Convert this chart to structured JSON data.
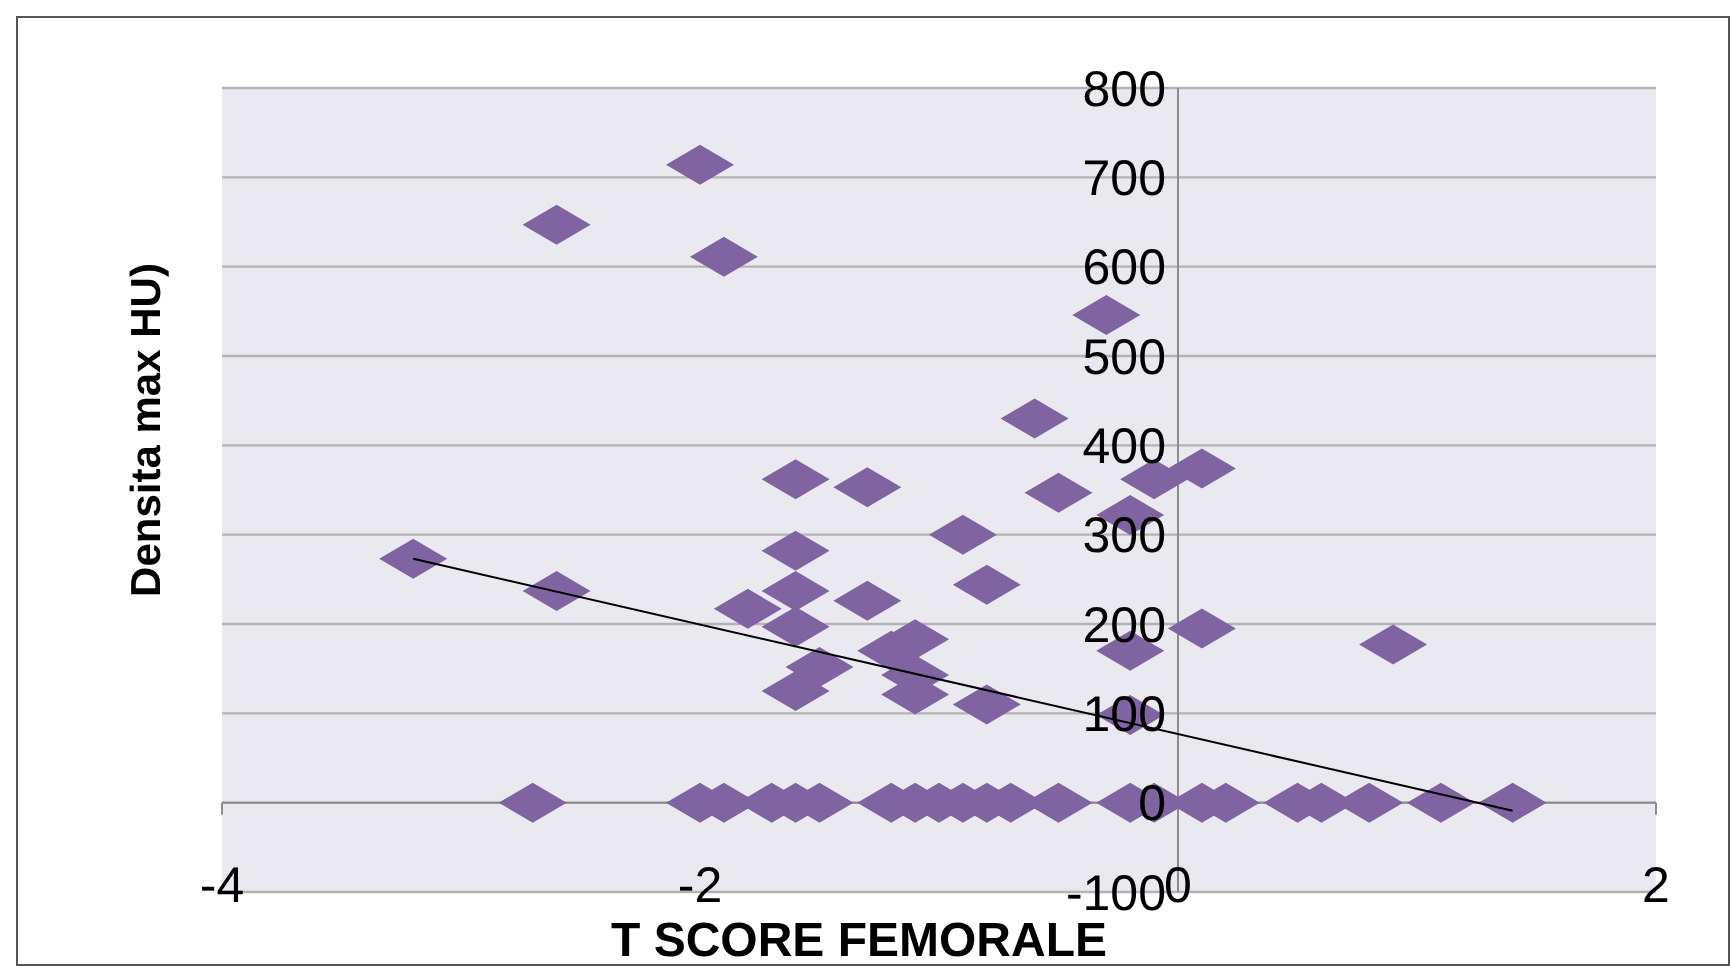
{
  "chart_data": {
    "type": "scatter",
    "xlabel": "T SCORE FEMORALE",
    "ylabel": "Densita max HU)",
    "xlim": [
      -4,
      2
    ],
    "ylim": [
      -100,
      800
    ],
    "xticks": [
      -4,
      -2,
      0,
      2
    ],
    "yticks": [
      -100,
      0,
      100,
      200,
      300,
      400,
      500,
      600,
      700,
      800
    ],
    "grid": "y",
    "marker": "diamond",
    "series": [
      {
        "color": "#8064a2",
        "x": [
          -2.0,
          -2.6,
          -1.9,
          -0.3,
          -0.6,
          -0.5,
          -0.1,
          0.1,
          -0.2,
          -1.6,
          -1.3,
          -0.9,
          -1.6,
          -3.2,
          -2.6,
          -1.8,
          -1.6,
          -1.3,
          -0.8,
          -1.6,
          -1.5,
          -1.6,
          -1.2,
          -1.1,
          -1.1,
          -1.1,
          -0.8,
          -0.2,
          -0.2,
          0.1,
          0.9,
          -2.7,
          -2.0,
          -1.9,
          -1.7,
          -1.6,
          -1.5,
          -1.2,
          -1.1,
          -1.0,
          -0.9,
          -0.8,
          -0.7,
          -0.5,
          -0.2,
          -0.1,
          0.1,
          0.2,
          0.5,
          0.6,
          0.8,
          1.1,
          1.4
        ],
        "values": [
          714,
          647,
          611,
          546,
          430,
          347,
          362,
          374,
          322,
          362,
          353,
          300,
          282,
          273,
          237,
          217,
          237,
          226,
          244,
          197,
          152,
          125,
          170,
          183,
          143,
          121,
          110,
          170,
          98,
          195,
          177,
          0,
          0,
          0,
          0,
          0,
          0,
          0,
          0,
          0,
          0,
          0,
          0,
          0,
          0,
          0,
          0,
          0,
          0,
          0,
          0,
          0,
          0
        ]
      },
      {
        "type": "line",
        "color": "#000000",
        "marker": "none",
        "x": [
          -3.2,
          1.4
        ],
        "values": [
          273,
          -9
        ]
      }
    ]
  }
}
